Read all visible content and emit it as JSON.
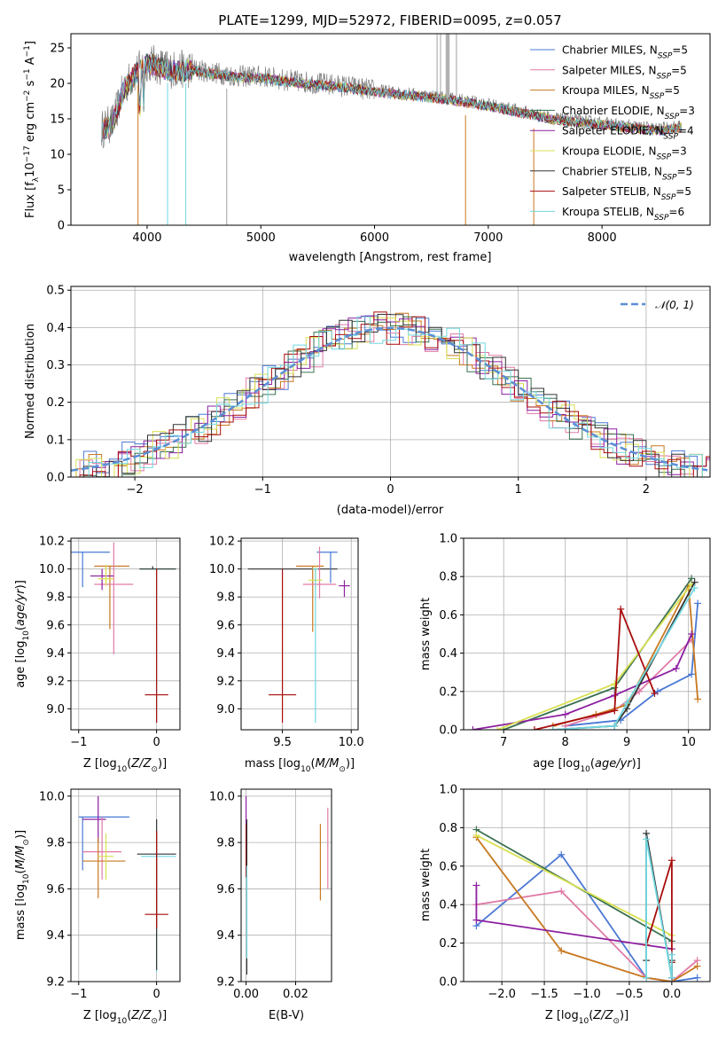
{
  "chart_data": [
    {
      "id": "spectrum",
      "type": "line",
      "title": "PLATE=1299, MJD=52972, FIBERID=0095, z=0.057",
      "xlabel": "wavelength [Angstrom, rest frame]",
      "ylabel": "Flux [f_λ10^-17 erg cm^-2 s^-1 A^-1]",
      "xlim": [
        3330,
        8950
      ],
      "ylim": [
        0,
        27
      ],
      "xticks": [
        4000,
        5000,
        6000,
        7000,
        8000
      ],
      "yticks": [
        0,
        5,
        10,
        15,
        20,
        25
      ],
      "legend_position": "top-right",
      "continuum": {
        "x": [
          3600,
          3700,
          3800,
          3900,
          4000,
          4100,
          4200,
          4400,
          4600,
          4800,
          5000,
          5200,
          5500,
          5800,
          6000,
          6300,
          6600,
          6800,
          7000,
          7300,
          7600,
          7900,
          8200,
          8500,
          8700
        ],
        "y": [
          13.5,
          14.5,
          19.5,
          21.5,
          23.0,
          22.5,
          22.0,
          22.0,
          21.5,
          21.0,
          21.0,
          20.5,
          20.0,
          19.5,
          19.0,
          18.5,
          18.0,
          17.5,
          17.0,
          16.0,
          15.0,
          14.5,
          14.0,
          13.5,
          14.0
        ]
      },
      "series": [
        {
          "name": "Chabrier MILES, N_SSP=5",
          "color": "#4a78d4"
        },
        {
          "name": "Salpeter MILES, N_SSP=5",
          "color": "#e07aa6"
        },
        {
          "name": "Kroupa MILES, N_SSP=5",
          "color": "#c87820"
        },
        {
          "name": "Chabrier ELODIE, N_SSP=3",
          "color": "#3a7050"
        },
        {
          "name": "Salpeter ELODIE, N_SSP=4",
          "color": "#8c1fa0"
        },
        {
          "name": "Kroupa ELODIE, N_SSP=3",
          "color": "#d8e050"
        },
        {
          "name": "Chabrier STELIB, N_SSP=5",
          "color": "#333333"
        },
        {
          "name": "Salpeter STELIB, N_SSP=5",
          "color": "#a80c0c"
        },
        {
          "name": "Kroupa STELIB, N_SSP=6",
          "color": "#70d8e0"
        }
      ]
    },
    {
      "id": "residuals",
      "type": "line",
      "xlabel": "(data-model)/error",
      "ylabel": "Normed distribution",
      "xlim": [
        -2.5,
        2.5
      ],
      "ylim": [
        0,
        0.51
      ],
      "xticks": [
        -2,
        -1,
        0,
        1,
        2
      ],
      "yticks": [
        0.0,
        0.1,
        0.2,
        0.3,
        0.4,
        0.5
      ],
      "legend": "𝒩(0, 1)",
      "legend_position": "top-right",
      "normal_color": "#5b8ed6"
    },
    {
      "id": "age-Z",
      "type": "scatter",
      "xlabel": "Z [log10(Z/Z⊙)]",
      "ylabel": "age [log10(age/yr)]",
      "xlim": [
        -1.1,
        0.3
      ],
      "ylim": [
        8.85,
        10.22
      ],
      "xticks": [
        -1,
        0
      ],
      "yticks": [
        9.0,
        9.2,
        9.4,
        9.6,
        9.8,
        10.0,
        10.2
      ],
      "points": [
        {
          "x": -0.95,
          "y": 10.12,
          "xerr": [
            0.15,
            0.35
          ],
          "yerr": [
            0.25,
            0.0
          ],
          "color": "#4a78d4"
        },
        {
          "x": -0.6,
          "y": 10.02,
          "xerr": [
            0.2,
            0.25
          ],
          "yerr": [
            0.45,
            0.0
          ],
          "color": "#c87820"
        },
        {
          "x": -0.55,
          "y": 9.89,
          "xerr": [
            0.25,
            0.25
          ],
          "yerr": [
            0.5,
            0.3
          ],
          "color": "#e07aa6"
        },
        {
          "x": -0.7,
          "y": 9.95,
          "xerr": [
            0.15,
            0.15
          ],
          "yerr": [
            0.1,
            0.05
          ],
          "color": "#8c1fa0"
        },
        {
          "x": -0.65,
          "y": 9.93,
          "xerr": [
            0.1,
            0.1
          ],
          "yerr": [
            0.05,
            0.1
          ],
          "color": "#d8e050"
        },
        {
          "x": 0.0,
          "y": 10.0,
          "xerr": [
            0.22,
            0.25
          ],
          "yerr": [
            1.1,
            0.0
          ],
          "color": "#70d8e0"
        },
        {
          "x": -0.05,
          "y": 10.0,
          "xerr": [
            0.17,
            0.3
          ],
          "yerr": [
            0.0,
            0.02
          ],
          "color": "#333333"
        },
        {
          "x": 0.0,
          "y": 9.1,
          "xerr": [
            0.15,
            0.15
          ],
          "yerr": [
            0.2,
            0.9
          ],
          "color": "#a80c0c"
        }
      ]
    },
    {
      "id": "age-mass",
      "type": "scatter",
      "xlabel": "mass [log10(M/M⊙)]",
      "ylabel": "",
      "xlim": [
        9.2,
        10.05
      ],
      "ylim": [
        8.85,
        10.22
      ],
      "xticks": [
        9.5,
        10.0
      ],
      "yticks": [
        9.0,
        9.2,
        9.4,
        9.6,
        9.8,
        10.0,
        10.2
      ],
      "points": [
        {
          "x": 9.75,
          "y": 10.0,
          "xerr": [
            0.5,
            0.15
          ],
          "yerr": [
            0.0,
            0.0
          ],
          "color": "#333333"
        },
        {
          "x": 9.85,
          "y": 10.12,
          "xerr": [
            0.1,
            0.05
          ],
          "yerr": [
            0.22,
            0.0
          ],
          "color": "#4a78d4"
        },
        {
          "x": 9.72,
          "y": 10.02,
          "xerr": [
            0.12,
            0.08
          ],
          "yerr": [
            0.47,
            0.0
          ],
          "color": "#c87820"
        },
        {
          "x": 9.77,
          "y": 9.89,
          "xerr": [
            0.12,
            0.12
          ],
          "yerr": [
            0.1,
            0.27
          ],
          "color": "#e07aa6"
        },
        {
          "x": 9.95,
          "y": 9.88,
          "xerr": [
            0.04,
            0.04
          ],
          "yerr": [
            0.08,
            0.04
          ],
          "color": "#8c1fa0"
        },
        {
          "x": 9.74,
          "y": 9.92,
          "xerr": [
            0.05,
            0.05
          ],
          "yerr": [
            0.07,
            0.1
          ],
          "color": "#d8e050"
        },
        {
          "x": 9.74,
          "y": 10.0,
          "xerr": [
            0.02,
            0.02
          ],
          "yerr": [
            1.1,
            0.0
          ],
          "color": "#70d8e0"
        },
        {
          "x": 9.5,
          "y": 9.1,
          "xerr": [
            0.1,
            0.1
          ],
          "yerr": [
            0.2,
            0.9
          ],
          "color": "#a80c0c"
        }
      ]
    },
    {
      "id": "weight-age",
      "type": "line",
      "xlabel": "age [log10(age/yr)]",
      "ylabel": "mass weight",
      "xlim": [
        6.35,
        10.35
      ],
      "ylim": [
        0,
        1.0
      ],
      "xticks": [
        7,
        8,
        9,
        10
      ],
      "yticks": [
        0.0,
        0.2,
        0.4,
        0.6,
        0.8,
        1.0
      ],
      "series": [
        {
          "name": "Chabrier MILES",
          "color": "#4a78d4",
          "x": [
            8.0,
            8.9,
            9.5,
            10.05,
            10.15
          ],
          "y": [
            0.02,
            0.05,
            0.2,
            0.29,
            0.66
          ]
        },
        {
          "name": "Salpeter MILES",
          "color": "#e07aa6",
          "x": [
            8.0,
            8.8,
            9.2,
            10.05
          ],
          "y": [
            0.02,
            0.1,
            0.2,
            0.47
          ]
        },
        {
          "name": "Kroupa MILES",
          "color": "#c87820",
          "x": [
            7.8,
            8.5,
            9.0,
            10.0,
            10.15
          ],
          "y": [
            0.02,
            0.08,
            0.13,
            0.75,
            0.16
          ]
        },
        {
          "name": "Chabrier ELODIE",
          "color": "#3a7050",
          "x": [
            7.0,
            8.8,
            10.05
          ],
          "y": [
            0.0,
            0.22,
            0.79
          ]
        },
        {
          "name": "Salpeter ELODIE",
          "color": "#8c1fa0",
          "x": [
            6.5,
            8.0,
            8.8,
            9.8,
            10.05
          ],
          "y": [
            0.0,
            0.08,
            0.18,
            0.32,
            0.5
          ]
        },
        {
          "name": "Kroupa ELODIE",
          "color": "#d8e050",
          "x": [
            6.9,
            8.8,
            10.05
          ],
          "y": [
            0.0,
            0.24,
            0.76
          ]
        },
        {
          "name": "Chabrier STELIB",
          "color": "#333333",
          "x": [
            7.8,
            8.8,
            9.0,
            10.1
          ],
          "y": [
            0.0,
            0.02,
            0.11,
            0.77
          ]
        },
        {
          "name": "Salpeter STELIB",
          "color": "#a80c0c",
          "x": [
            7.5,
            8.8,
            8.9,
            9.45
          ],
          "y": [
            0.0,
            0.1,
            0.63,
            0.19
          ]
        },
        {
          "name": "Kroupa STELIB",
          "color": "#70d8e0",
          "x": [
            7.8,
            8.8,
            9.0,
            10.1
          ],
          "y": [
            0.0,
            0.02,
            0.14,
            0.74
          ]
        }
      ]
    },
    {
      "id": "mass-Z",
      "type": "scatter",
      "xlabel": "Z [log10(Z/Z⊙)]",
      "ylabel": "mass [log10(M/M⊙)]",
      "xlim": [
        -1.1,
        0.3
      ],
      "ylim": [
        9.2,
        10.03
      ],
      "xticks": [
        -1,
        0
      ],
      "yticks": [
        9.2,
        9.4,
        9.6,
        9.8,
        10.0
      ],
      "points": [
        {
          "x": -0.95,
          "y": 9.91,
          "xerr": [
            0.05,
            0.6
          ],
          "yerr": [
            0.23,
            0.0
          ],
          "color": "#4a78d4"
        },
        {
          "x": -0.75,
          "y": 9.9,
          "xerr": [
            0.2,
            0.1
          ],
          "yerr": [
            0.1,
            0.1
          ],
          "color": "#8c1fa0"
        },
        {
          "x": -0.7,
          "y": 9.76,
          "xerr": [
            0.25,
            0.25
          ],
          "yerr": [
            0.12,
            0.15
          ],
          "color": "#e07aa6"
        },
        {
          "x": -0.75,
          "y": 9.72,
          "xerr": [
            0.2,
            0.35
          ],
          "yerr": [
            0.16,
            0.1
          ],
          "color": "#c87820"
        },
        {
          "x": -0.65,
          "y": 9.74,
          "xerr": [
            0.1,
            0.1
          ],
          "yerr": [
            0.1,
            0.1
          ],
          "color": "#d8e050"
        },
        {
          "x": 0.0,
          "y": 9.74,
          "xerr": [
            0.2,
            0.25
          ],
          "yerr": [
            0.5,
            0.0
          ],
          "color": "#70d8e0"
        },
        {
          "x": 0.0,
          "y": 9.75,
          "xerr": [
            0.25,
            0.25
          ],
          "yerr": [
            0.5,
            0.15
          ],
          "color": "#333333"
        },
        {
          "x": 0.0,
          "y": 9.49,
          "xerr": [
            0.15,
            0.15
          ],
          "yerr": [
            0.06,
            0.36
          ],
          "color": "#a80c0c"
        }
      ]
    },
    {
      "id": "mass-EBV",
      "type": "scatter",
      "xlabel": "E(B-V)",
      "ylabel": "",
      "xlim": [
        -0.002,
        0.0345
      ],
      "ylim": [
        9.2,
        10.03
      ],
      "xticks": [
        0.0,
        0.02
      ],
      "yticks": [
        9.2,
        9.4,
        9.6,
        9.8,
        10.0
      ],
      "points": [
        {
          "x": 0.0,
          "y": 9.86,
          "yerr": [
            0.1,
            0.14
          ],
          "color": "#8c1fa0"
        },
        {
          "x": 0.0,
          "y": 9.76,
          "yerr": [
            0.11,
            0.12
          ],
          "color": "#a80c0c"
        },
        {
          "x": 0.0003,
          "y": 9.7,
          "yerr": [
            0.47,
            0.2
          ],
          "color": "#333333"
        },
        {
          "x": 0.0003,
          "y": 9.65,
          "yerr": [
            0.35,
            0.05
          ],
          "color": "#70d8e0"
        },
        {
          "x": 0.03,
          "y": 9.72,
          "yerr": [
            0.17,
            0.16
          ],
          "color": "#c87820"
        },
        {
          "x": 0.033,
          "y": 9.77,
          "yerr": [
            0.17,
            0.18
          ],
          "color": "#e07aa6"
        }
      ]
    },
    {
      "id": "weight-Z",
      "type": "line",
      "xlabel": "Z [log10(Z/Z⊙)]",
      "ylabel": "mass weight",
      "xlim": [
        -2.45,
        0.45
      ],
      "ylim": [
        0,
        1.0
      ],
      "xticks": [
        -2.0,
        -1.5,
        -1.0,
        -0.5,
        0.0
      ],
      "yticks": [
        0.0,
        0.2,
        0.4,
        0.6,
        0.8,
        1.0
      ],
      "series": [
        {
          "name": "Chabrier MILES",
          "color": "#4a78d4",
          "x": [
            -2.3,
            -1.3,
            -0.3,
            0.0,
            0.3
          ],
          "y": [
            0.29,
            0.66,
            0.02,
            0.0,
            0.02
          ]
        },
        {
          "name": "Salpeter MILES",
          "color": "#e07aa6",
          "x": [
            -2.3,
            -1.3,
            -0.3,
            0.0,
            0.3
          ],
          "y": [
            0.4,
            0.47,
            0.02,
            0.0,
            0.11
          ]
        },
        {
          "name": "Kroupa MILES",
          "color": "#c87820",
          "x": [
            -2.3,
            -1.3,
            -0.3,
            0.0,
            0.3
          ],
          "y": [
            0.75,
            0.16,
            0.02,
            0.0,
            0.08
          ]
        },
        {
          "name": "Chabrier ELODIE",
          "color": "#3a7050",
          "x": [
            -2.3,
            0.0
          ],
          "y": [
            0.79,
            0.21
          ]
        },
        {
          "name": "Salpeter ELODIE",
          "color": "#8c1fa0",
          "x": [
            -2.3,
            -2.3,
            0.0
          ],
          "y": [
            0.5,
            0.32,
            0.17
          ]
        },
        {
          "name": "Kroupa ELODIE",
          "color": "#d8e050",
          "x": [
            -2.3,
            0.0
          ],
          "y": [
            0.76,
            0.24
          ]
        },
        {
          "name": "Chabrier STELIB",
          "color": "#333333",
          "x": [
            -0.3,
            -0.3,
            0.0,
            0.0
          ],
          "y": [
            0.11,
            0.77,
            0.02,
            0.11
          ]
        },
        {
          "name": "Salpeter STELIB",
          "color": "#a80c0c",
          "x": [
            -0.3,
            0.0,
            0.0,
            0.0
          ],
          "y": [
            0.19,
            0.63,
            0.1,
            0.0
          ]
        },
        {
          "name": "Kroupa STELIB",
          "color": "#70d8e0",
          "x": [
            -0.3,
            -0.3,
            0.0,
            0.0
          ],
          "y": [
            0.02,
            0.74,
            0.02,
            0.14
          ]
        }
      ]
    }
  ]
}
